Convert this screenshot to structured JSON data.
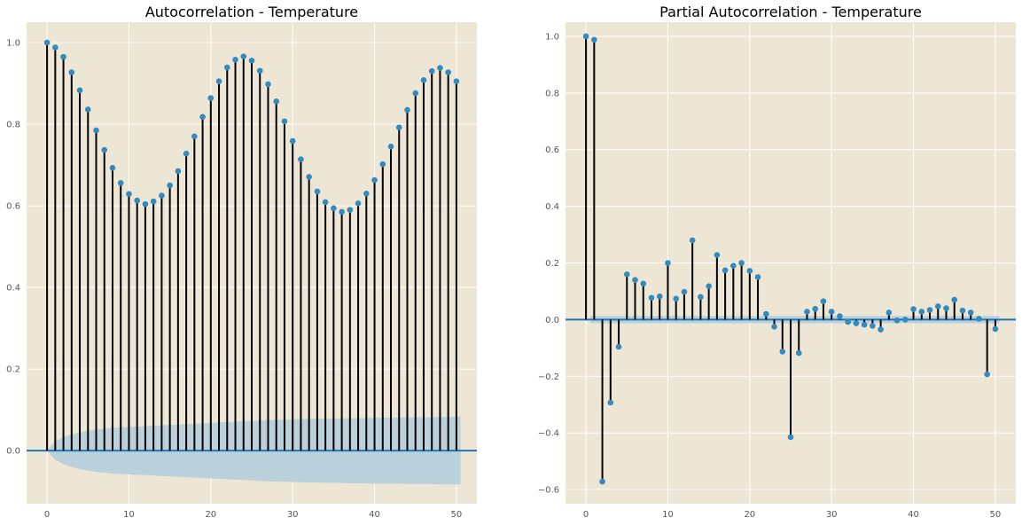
{
  "chart_data": [
    {
      "type": "stem",
      "title": "Autocorrelation - Temperature",
      "xlabel": "",
      "ylabel": "",
      "xlim": [
        -2.5,
        52.5
      ],
      "ylim": [
        -0.13,
        1.05
      ],
      "xticks": [
        0,
        10,
        20,
        30,
        40,
        50
      ],
      "yticks": [
        0.0,
        0.2,
        0.4,
        0.6,
        0.8,
        1.0
      ],
      "xtick_labels": [
        "0",
        "10",
        "20",
        "30",
        "40",
        "50"
      ],
      "ytick_labels": [
        "0.0",
        "0.2",
        "0.4",
        "0.6",
        "0.8",
        "1.0"
      ],
      "grid": true,
      "lags": [
        0,
        1,
        2,
        3,
        4,
        5,
        6,
        7,
        8,
        9,
        10,
        11,
        12,
        13,
        14,
        15,
        16,
        17,
        18,
        19,
        20,
        21,
        22,
        23,
        24,
        25,
        26,
        27,
        28,
        29,
        30,
        31,
        32,
        33,
        34,
        35,
        36,
        37,
        38,
        39,
        40,
        41,
        42,
        43,
        44,
        45,
        46,
        47,
        48,
        49,
        50
      ],
      "values": [
        1.0,
        0.988,
        0.965,
        0.927,
        0.883,
        0.836,
        0.785,
        0.737,
        0.693,
        0.656,
        0.629,
        0.613,
        0.604,
        0.611,
        0.625,
        0.65,
        0.685,
        0.728,
        0.77,
        0.818,
        0.864,
        0.905,
        0.939,
        0.958,
        0.966,
        0.956,
        0.931,
        0.898,
        0.856,
        0.807,
        0.759,
        0.714,
        0.671,
        0.635,
        0.609,
        0.594,
        0.585,
        0.59,
        0.606,
        0.63,
        0.663,
        0.702,
        0.745,
        0.792,
        0.835,
        0.876,
        0.908,
        0.93,
        0.938,
        0.927,
        0.905
      ],
      "confint_upper": [
        0.0,
        0.023,
        0.033,
        0.04,
        0.045,
        0.049,
        0.052,
        0.054,
        0.056,
        0.057,
        0.058,
        0.059,
        0.06,
        0.061,
        0.062,
        0.063,
        0.064,
        0.065,
        0.066,
        0.067,
        0.068,
        0.069,
        0.07,
        0.071,
        0.072,
        0.073,
        0.074,
        0.075,
        0.076,
        0.076,
        0.077,
        0.077,
        0.078,
        0.078,
        0.079,
        0.079,
        0.079,
        0.08,
        0.08,
        0.08,
        0.081,
        0.081,
        0.081,
        0.081,
        0.082,
        0.082,
        0.082,
        0.082,
        0.083,
        0.083,
        0.083
      ],
      "colors": {
        "stem": "#000000",
        "marker": "#348abd",
        "zero_line": "#1f77b4",
        "conf_band": "#b0cbdc",
        "background": "#eee6d4",
        "grid": "#ffffff"
      }
    },
    {
      "type": "stem",
      "title": "Partial Autocorrelation - Temperature",
      "xlabel": "",
      "ylabel": "",
      "xlim": [
        -2.5,
        52.5
      ],
      "ylim": [
        -0.65,
        1.05
      ],
      "xticks": [
        0,
        10,
        20,
        30,
        40,
        50
      ],
      "yticks": [
        -0.6,
        -0.4,
        -0.2,
        0.0,
        0.2,
        0.4,
        0.6,
        0.8,
        1.0
      ],
      "xtick_labels": [
        "0",
        "10",
        "20",
        "30",
        "40",
        "50"
      ],
      "ytick_labels": [
        "−0.6",
        "−0.4",
        "−0.2",
        "0.0",
        "0.2",
        "0.4",
        "0.6",
        "0.8",
        "1.0"
      ],
      "grid": true,
      "lags": [
        0,
        1,
        2,
        3,
        4,
        5,
        6,
        7,
        8,
        9,
        10,
        11,
        12,
        13,
        14,
        15,
        16,
        17,
        18,
        19,
        20,
        21,
        22,
        23,
        24,
        25,
        26,
        27,
        28,
        29,
        30,
        31,
        32,
        33,
        34,
        35,
        36,
        37,
        38,
        39,
        40,
        41,
        42,
        43,
        44,
        45,
        46,
        47,
        48,
        49,
        50
      ],
      "values": [
        1.0,
        0.988,
        -0.572,
        -0.293,
        -0.096,
        0.16,
        0.14,
        0.127,
        0.077,
        0.082,
        0.2,
        0.074,
        0.098,
        0.28,
        0.08,
        0.118,
        0.228,
        0.174,
        0.19,
        0.2,
        0.172,
        0.15,
        0.02,
        -0.025,
        -0.113,
        -0.415,
        -0.118,
        0.028,
        0.038,
        0.065,
        0.028,
        0.012,
        -0.008,
        -0.013,
        -0.018,
        -0.022,
        -0.035,
        0.025,
        -0.003,
        0.0,
        0.037,
        0.028,
        0.034,
        0.047,
        0.04,
        0.07,
        0.032,
        0.025,
        0.003,
        -0.193,
        -0.033
      ],
      "confint_half_width": 0.013,
      "colors": {
        "stem": "#000000",
        "marker": "#348abd",
        "zero_line": "#1f77b4",
        "conf_band": "#b0cbdc",
        "background": "#eee6d4",
        "grid": "#ffffff"
      }
    }
  ]
}
